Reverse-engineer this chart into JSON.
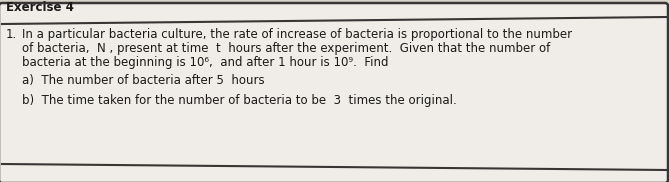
{
  "background_color": "#d8d4cc",
  "box_color": "#f0ede8",
  "border_color": "#3a3535",
  "exercise_label": "Exercise 4",
  "line1_num": "1.",
  "line1_text": "In a particular bacteria culture, the rate of increase of bacteria is proportional to the number",
  "line2_text": "of bacteria,  N , present at time  t  hours after the experiment.  Given that the number of",
  "line3_text": "bacteria at the beginning is 10⁶,  and after 1 hour is 10⁹.  Find",
  "line_a": "a)  The number of bacteria after 5  hours",
  "line_b": "b)  The time taken for the number of bacteria to be  3  times the original.",
  "font_size": 8.5,
  "text_color": "#1a1a1a"
}
